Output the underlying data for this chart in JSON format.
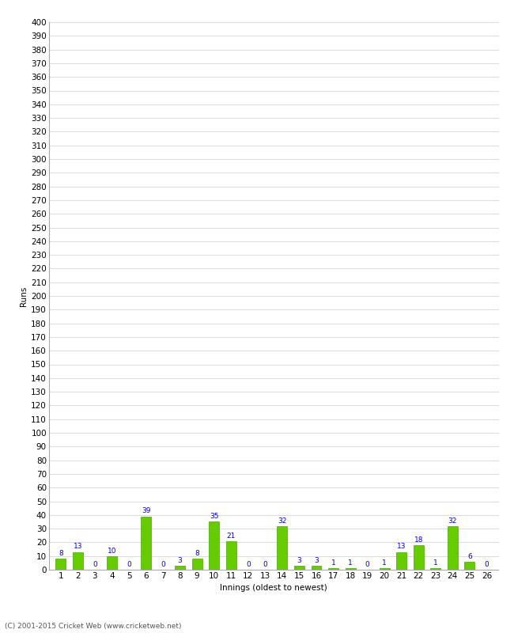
{
  "innings": [
    1,
    2,
    3,
    4,
    5,
    6,
    7,
    8,
    9,
    10,
    11,
    12,
    13,
    14,
    15,
    16,
    17,
    18,
    19,
    20,
    21,
    22,
    23,
    24,
    25,
    26
  ],
  "runs": [
    8,
    13,
    0,
    10,
    0,
    39,
    0,
    3,
    8,
    35,
    21,
    0,
    0,
    32,
    3,
    3,
    1,
    1,
    0,
    1,
    13,
    18,
    1,
    32,
    6,
    0
  ],
  "bar_color": "#66cc00",
  "bar_edge_color": "#44aa00",
  "label_color": "#0000cc",
  "background_color": "#ffffff",
  "grid_color": "#cccccc",
  "ylabel": "Runs",
  "xlabel": "Innings (oldest to newest)",
  "ylim": [
    0,
    400
  ],
  "ytick_step": 10,
  "ytick_label_step": 10,
  "footer": "(C) 2001-2015 Cricket Web (www.cricketweb.net)",
  "axis_fontsize": 7.5,
  "label_fontsize": 6.5,
  "footer_fontsize": 6.5,
  "xlabel_fontsize": 7.5,
  "ylabel_fontsize": 7.5
}
